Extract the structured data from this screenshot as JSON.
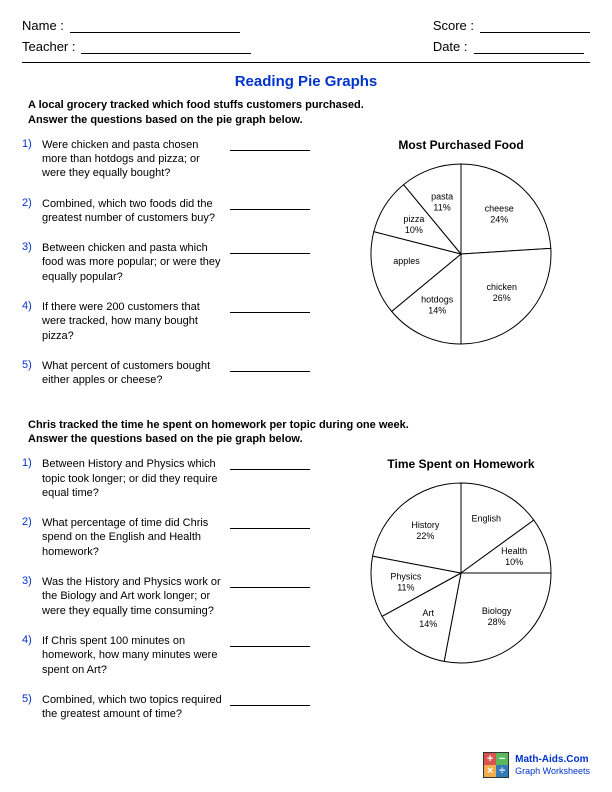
{
  "header": {
    "name_label": "Name :",
    "teacher_label": "Teacher :",
    "score_label": "Score :",
    "date_label": "Date :"
  },
  "title": "Reading Pie Graphs",
  "sections": [
    {
      "intro": "A local grocery tracked which food stuffs customers purchased.\nAnswer the questions based on the pie graph below.",
      "questions": [
        "Were chicken and pasta chosen more than hotdogs and pizza; or were they equally bought?",
        "Combined, which two foods did the greatest number of customers buy?",
        "Between chicken and pasta which food was more popular; or were they equally popular?",
        "If there were 200 customers that were tracked, how many bought pizza?",
        "What percent of customers bought either apples or cheese?"
      ],
      "chart": {
        "title": "Most Purchased Food",
        "type": "pie",
        "radius": 90,
        "colors": {
          "fill": "#ffffff",
          "stroke": "#000000",
          "text": "#000000"
        },
        "slices": [
          {
            "label": "cheese",
            "value": 24
          },
          {
            "label": "chicken",
            "value": 26
          },
          {
            "label": "hotdogs",
            "value": 14
          },
          {
            "label": "apples",
            "value": 15
          },
          {
            "label": "pizza",
            "value": 10
          },
          {
            "label": "pasta",
            "value": 11
          }
        ]
      }
    },
    {
      "intro": "Chris tracked the time he spent on homework per topic during one week.\nAnswer the questions based on the pie graph below.",
      "questions": [
        "Between History and Physics which topic took longer; or did they require equal time?",
        "What percentage of time did Chris spend on the English and Health homework?",
        "Was the History and Physics work or the Biology and Art work longer; or were they equally time consuming?",
        "If Chris spent 100 minutes on homework, how many minutes were spent on Art?",
        "Combined, which two topics required the greatest amount of time?"
      ],
      "chart": {
        "title": "Time Spent on Homework",
        "type": "pie",
        "radius": 90,
        "colors": {
          "fill": "#ffffff",
          "stroke": "#000000",
          "text": "#000000"
        },
        "slices": [
          {
            "label": "English",
            "value": 15
          },
          {
            "label": "Health",
            "value": 10
          },
          {
            "label": "Biology",
            "value": 28
          },
          {
            "label": "Art",
            "value": 14
          },
          {
            "label": "Physics",
            "value": 11
          },
          {
            "label": "History",
            "value": 22
          }
        ]
      }
    }
  ],
  "footer": {
    "site": "Math-Aids.Com",
    "sub": "Graph Worksheets",
    "logo_colors": [
      "#d9534f",
      "#5cb85c",
      "#f0ad4e",
      "#337ab7"
    ],
    "logo_symbols": [
      "+",
      "−",
      "×",
      "÷"
    ]
  }
}
